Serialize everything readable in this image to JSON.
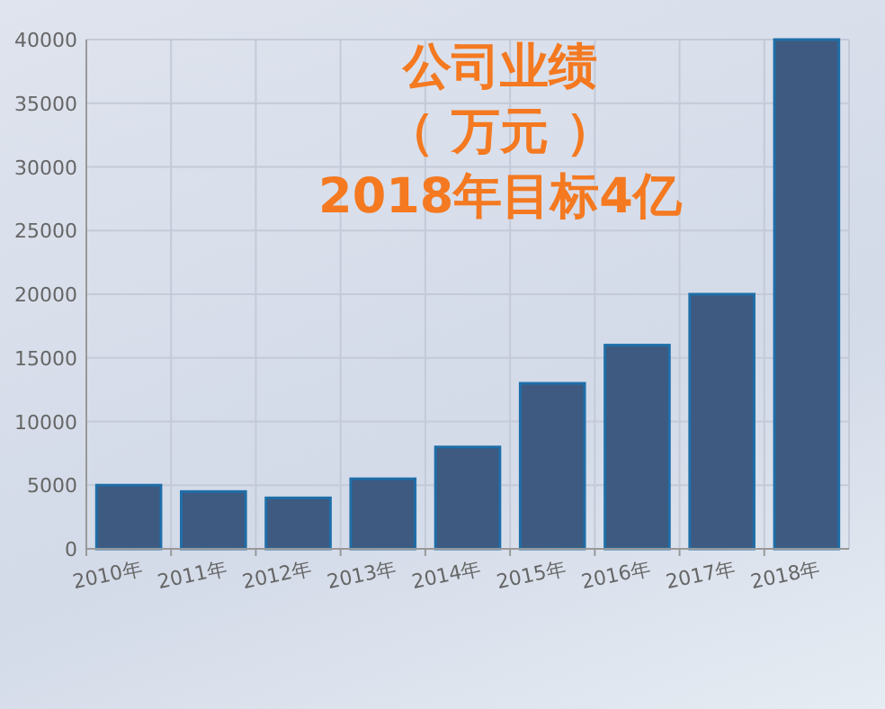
{
  "chart_data": {
    "type": "bar",
    "title": "公司业绩",
    "subtitle": "（ 万元 ）",
    "annotations": [
      "2018年目标4亿"
    ],
    "categories": [
      "2010年",
      "2011年",
      "2012年",
      "2013年",
      "2014年",
      "2015年",
      "2016年",
      "2017年",
      "2018年"
    ],
    "values": [
      5000,
      4500,
      4000,
      5500,
      8000,
      13000,
      16000,
      20000,
      40000
    ],
    "color": "#3e5a80",
    "ylim": [
      0,
      40000
    ],
    "yticks": [
      0,
      5000,
      10000,
      15000,
      20000,
      25000,
      30000,
      35000,
      40000
    ],
    "grid": true
  }
}
